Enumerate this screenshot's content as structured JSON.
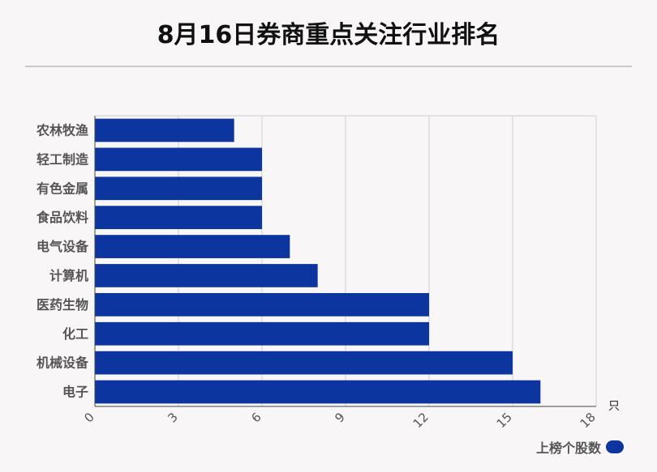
{
  "title": "8月16日券商重点关注行业排名",
  "chart_data": {
    "type": "bar",
    "orientation": "horizontal",
    "categories": [
      "农林牧渔",
      "轻工制造",
      "有色金属",
      "食品饮料",
      "电气设备",
      "计算机",
      "医药生物",
      "化工",
      "机械设备",
      "电子"
    ],
    "series": [
      {
        "name": "上榜个股数",
        "values": [
          5,
          6,
          6,
          6,
          7,
          8,
          12,
          12,
          15,
          16
        ]
      }
    ],
    "xticks": [
      0,
      3,
      6,
      9,
      12,
      15,
      18
    ],
    "xlim": [
      0,
      18
    ],
    "xunit": "只",
    "grid": true,
    "legend_position": "bottom-right",
    "color": "#0d35a0"
  }
}
